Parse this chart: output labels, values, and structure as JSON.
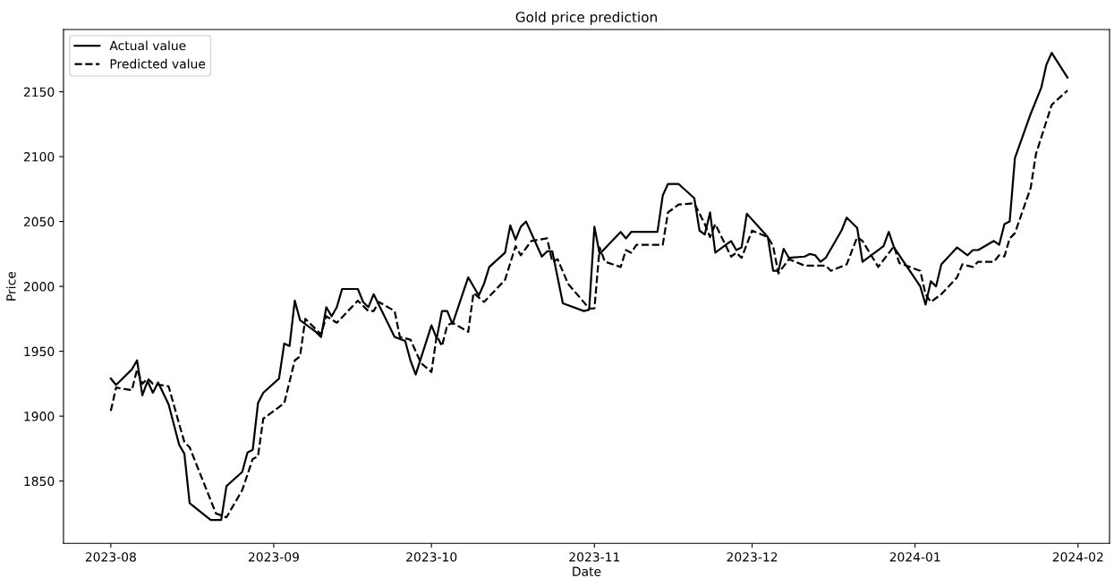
{
  "chart_data": {
    "type": "line",
    "title": "Gold price prediction",
    "xlabel": "Date",
    "ylabel": "Price",
    "xlim": [
      "2023-07-23",
      "2024-02-07"
    ],
    "ylim": [
      1802,
      2198
    ],
    "xticks": [
      {
        "value": "2023-08-01",
        "label": "2023-08"
      },
      {
        "value": "2023-09-01",
        "label": "2023-09"
      },
      {
        "value": "2023-10-01",
        "label": "2023-10"
      },
      {
        "value": "2023-11-01",
        "label": "2023-11"
      },
      {
        "value": "2023-12-01",
        "label": "2023-12"
      },
      {
        "value": "2024-01-01",
        "label": "2024-01"
      },
      {
        "value": "2024-02-01",
        "label": "2024-02"
      }
    ],
    "yticks": [
      1850,
      1900,
      1950,
      2000,
      2050,
      2100,
      2150
    ],
    "grid": false,
    "legend": "top left",
    "marker": "none",
    "series": [
      {
        "name": "Actual value",
        "color": "#000000",
        "line_style": "solid",
        "x": [
          "2023-08-01",
          "2023-08-02",
          "2023-08-05",
          "2023-08-06",
          "2023-08-07",
          "2023-08-08",
          "2023-08-09",
          "2023-08-10",
          "2023-08-12",
          "2023-08-14",
          "2023-08-15",
          "2023-08-16",
          "2023-08-20",
          "2023-08-22",
          "2023-08-23",
          "2023-08-26",
          "2023-08-27",
          "2023-08-28",
          "2023-08-29",
          "2023-08-30",
          "2023-09-02",
          "2023-09-03",
          "2023-09-04",
          "2023-09-05",
          "2023-09-06",
          "2023-09-09",
          "2023-09-10",
          "2023-09-11",
          "2023-09-12",
          "2023-09-13",
          "2023-09-14",
          "2023-09-17",
          "2023-09-18",
          "2023-09-19",
          "2023-09-20",
          "2023-09-24",
          "2023-09-26",
          "2023-09-27",
          "2023-09-28",
          "2023-10-01",
          "2023-10-02",
          "2023-10-03",
          "2023-10-04",
          "2023-10-05",
          "2023-10-08",
          "2023-10-10",
          "2023-10-11",
          "2023-10-12",
          "2023-10-15",
          "2023-10-16",
          "2023-10-17",
          "2023-10-18",
          "2023-10-19",
          "2023-10-22",
          "2023-10-23",
          "2023-10-24",
          "2023-10-26",
          "2023-10-30",
          "2023-10-31",
          "2023-11-01",
          "2023-11-02",
          "2023-11-06",
          "2023-11-07",
          "2023-11-08",
          "2023-11-13",
          "2023-11-14",
          "2023-11-15",
          "2023-11-17",
          "2023-11-20",
          "2023-11-21",
          "2023-11-22",
          "2023-11-23",
          "2023-11-24",
          "2023-11-26",
          "2023-11-27",
          "2023-11-28",
          "2023-11-29",
          "2023-11-30",
          "2023-12-04",
          "2023-12-05",
          "2023-12-06",
          "2023-12-07",
          "2023-12-08",
          "2023-12-11",
          "2023-12-12",
          "2023-12-13",
          "2023-12-14",
          "2023-12-15",
          "2023-12-18",
          "2023-12-19",
          "2023-12-21",
          "2023-12-22",
          "2023-12-26",
          "2023-12-27",
          "2023-12-28",
          "2024-01-02",
          "2024-01-03",
          "2024-01-04",
          "2024-01-05",
          "2024-01-06",
          "2024-01-09",
          "2024-01-11",
          "2024-01-12",
          "2024-01-13",
          "2024-01-16",
          "2024-01-17",
          "2024-01-18",
          "2024-01-19",
          "2024-01-20",
          "2024-01-23",
          "2024-01-25",
          "2024-01-26",
          "2024-01-27",
          "2024-01-30"
        ],
        "values": [
          1929,
          1924,
          1936,
          1943,
          1916,
          1927,
          1918,
          1926,
          1909,
          1878,
          1871,
          1833,
          1820,
          1820,
          1846,
          1857,
          1872,
          1874,
          1910,
          1918,
          1929,
          1956,
          1954,
          1989,
          1974,
          1965,
          1961,
          1984,
          1977,
          1984,
          1998,
          1998,
          1988,
          1984,
          1994,
          1961,
          1958,
          1943,
          1932,
          1970,
          1960,
          1981,
          1981,
          1971,
          2007,
          1993,
          2002,
          2015,
          2026,
          2047,
          2036,
          2046,
          2050,
          2023,
          2027,
          2027,
          1987,
          1981,
          1982,
          2046,
          2025,
          2042,
          2037,
          2042,
          2042,
          2070,
          2079,
          2079,
          2068,
          2043,
          2040,
          2057,
          2026,
          2032,
          2035,
          2028,
          2030,
          2056,
          2038,
          2012,
          2012,
          2029,
          2022,
          2023,
          2025,
          2024,
          2019,
          2022,
          2043,
          2053,
          2045,
          2019,
          2031,
          2042,
          2030,
          2000,
          1986,
          2004,
          2000,
          2017,
          2030,
          2024,
          2028,
          2028,
          2035,
          2032,
          2048,
          2050,
          2099,
          2133,
          2153,
          2171,
          2180,
          2161
        ]
      },
      {
        "name": "Predicted value",
        "color": "#000000",
        "line_style": "dashed",
        "x": [
          "2023-08-01",
          "2023-08-02",
          "2023-08-05",
          "2023-08-06",
          "2023-08-07",
          "2023-08-08",
          "2023-08-09",
          "2023-08-12",
          "2023-08-14",
          "2023-08-15",
          "2023-08-16",
          "2023-08-21",
          "2023-08-23",
          "2023-08-26",
          "2023-08-28",
          "2023-08-29",
          "2023-08-30",
          "2023-09-03",
          "2023-09-05",
          "2023-09-06",
          "2023-09-07",
          "2023-09-10",
          "2023-09-11",
          "2023-09-13",
          "2023-09-17",
          "2023-09-19",
          "2023-09-20",
          "2023-09-21",
          "2023-09-24",
          "2023-09-25",
          "2023-09-27",
          "2023-09-29",
          "2023-10-01",
          "2023-10-02",
          "2023-10-03",
          "2023-10-04",
          "2023-10-05",
          "2023-10-08",
          "2023-10-09",
          "2023-10-11",
          "2023-10-15",
          "2023-10-17",
          "2023-10-18",
          "2023-10-20",
          "2023-10-23",
          "2023-10-24",
          "2023-10-25",
          "2023-10-27",
          "2023-10-31",
          "2023-11-01",
          "2023-11-02",
          "2023-11-03",
          "2023-11-06",
          "2023-11-07",
          "2023-11-08",
          "2023-11-09",
          "2023-11-14",
          "2023-11-15",
          "2023-11-17",
          "2023-11-20",
          "2023-11-22",
          "2023-11-23",
          "2023-11-24",
          "2023-11-27",
          "2023-11-28",
          "2023-11-29",
          "2023-12-01",
          "2023-12-04",
          "2023-12-05",
          "2023-12-06",
          "2023-12-08",
          "2023-12-11",
          "2023-12-15",
          "2023-12-16",
          "2023-12-19",
          "2023-12-21",
          "2023-12-22",
          "2023-12-25",
          "2023-12-28",
          "2023-12-29",
          "2024-01-02",
          "2024-01-03",
          "2024-01-04",
          "2024-01-06",
          "2024-01-09",
          "2024-01-10",
          "2024-01-12",
          "2024-01-13",
          "2024-01-16",
          "2024-01-17",
          "2024-01-18",
          "2024-01-19",
          "2024-01-20",
          "2024-01-23",
          "2024-01-24",
          "2024-01-27",
          "2024-01-30"
        ],
        "values": [
          1904,
          1922,
          1920,
          1936,
          1925,
          1929,
          1925,
          1923,
          1894,
          1880,
          1876,
          1825,
          1822,
          1843,
          1867,
          1869,
          1898,
          1910,
          1943,
          1946,
          1975,
          1963,
          1977,
          1972,
          1989,
          1981,
          1981,
          1988,
          1981,
          1961,
          1959,
          1941,
          1934,
          1962,
          1954,
          1970,
          1972,
          1965,
          1995,
          1988,
          2005,
          2031,
          2024,
          2035,
          2037,
          2019,
          2021,
          2002,
          1983,
          1983,
          2030,
          2019,
          2015,
          2028,
          2026,
          2032,
          2032,
          2057,
          2063,
          2064,
          2048,
          2038,
          2048,
          2023,
          2026,
          2022,
          2043,
          2038,
          2031,
          2010,
          2021,
          2016,
          2016,
          2012,
          2017,
          2038,
          2035,
          2015,
          2031,
          2018,
          2012,
          1994,
          1988,
          1994,
          2007,
          2017,
          2015,
          2019,
          2019,
          2024,
          2023,
          2037,
          2041,
          2076,
          2102,
          2140,
          2151
        ]
      }
    ]
  }
}
